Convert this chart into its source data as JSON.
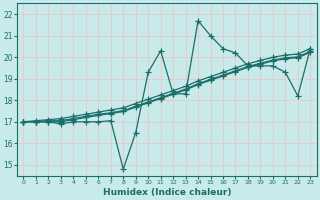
{
  "xlabel": "Humidex (Indice chaleur)",
  "xlim": [
    -0.5,
    23.5
  ],
  "ylim": [
    14.5,
    22.5
  ],
  "yticks": [
    15,
    16,
    17,
    18,
    19,
    20,
    21,
    22
  ],
  "xticks": [
    0,
    1,
    2,
    3,
    4,
    5,
    6,
    7,
    8,
    9,
    10,
    11,
    12,
    13,
    14,
    15,
    16,
    17,
    18,
    19,
    20,
    21,
    22,
    23
  ],
  "bg_color": "#c8eaea",
  "grid_color": "#e8c8c8",
  "line_color": "#1a6e6a",
  "series": {
    "volatile": [
      17.0,
      17.0,
      17.0,
      16.9,
      17.0,
      17.0,
      17.0,
      17.05,
      14.8,
      16.5,
      19.3,
      20.3,
      18.3,
      18.3,
      21.7,
      21.0,
      20.4,
      20.2,
      19.6,
      19.6,
      19.6,
      19.3,
      18.2,
      20.4
    ],
    "line1": [
      17.0,
      17.05,
      17.1,
      17.15,
      17.25,
      17.35,
      17.45,
      17.55,
      17.65,
      17.85,
      18.05,
      18.25,
      18.45,
      18.65,
      18.9,
      19.1,
      19.3,
      19.5,
      19.7,
      19.85,
      20.0,
      20.1,
      20.15,
      20.4
    ],
    "line2": [
      17.0,
      17.0,
      17.05,
      17.05,
      17.15,
      17.25,
      17.35,
      17.42,
      17.52,
      17.72,
      17.92,
      18.12,
      18.32,
      18.52,
      18.77,
      18.97,
      19.17,
      19.37,
      19.57,
      19.72,
      19.87,
      19.97,
      20.02,
      20.27
    ],
    "line3": [
      17.0,
      17.0,
      17.0,
      17.0,
      17.1,
      17.2,
      17.3,
      17.38,
      17.48,
      17.68,
      17.88,
      18.08,
      18.28,
      18.48,
      18.73,
      18.93,
      19.13,
      19.33,
      19.53,
      19.68,
      19.83,
      19.93,
      19.98,
      20.23
    ]
  }
}
